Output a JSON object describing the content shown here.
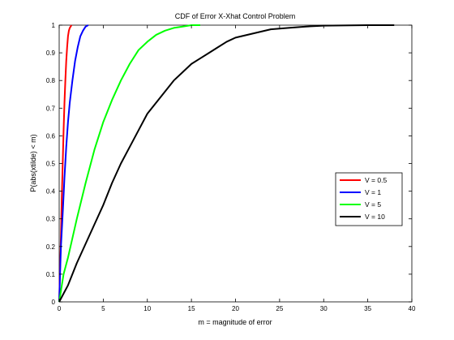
{
  "chart_data": {
    "type": "line",
    "title": "CDF of Error X-Xhat Control Problem",
    "xlabel": "m = magnitude of error",
    "ylabel": "P(abs(xtilde) < m)",
    "xlim": [
      0,
      40
    ],
    "ylim": [
      0,
      1
    ],
    "xticks": [
      0,
      5,
      10,
      15,
      20,
      25,
      30,
      35,
      40
    ],
    "yticks": [
      0,
      0.1,
      0.2,
      0.3,
      0.4,
      0.5,
      0.6,
      0.7,
      0.8,
      0.9,
      1
    ],
    "grid": false,
    "legend_position": "right",
    "series": [
      {
        "name": "V = 0.5",
        "color": "#ff0000",
        "x": [
          0,
          0.05,
          0.1,
          0.2,
          0.3,
          0.4,
          0.5,
          0.6,
          0.7,
          0.8,
          0.9,
          1.0,
          1.1,
          1.2,
          1.4
        ],
        "y": [
          0,
          0.06,
          0.12,
          0.24,
          0.38,
          0.5,
          0.62,
          0.72,
          0.8,
          0.87,
          0.92,
          0.96,
          0.98,
          0.99,
          1.0
        ]
      },
      {
        "name": "V = 1",
        "color": "#0000ff",
        "x": [
          0,
          0.2,
          0.4,
          0.6,
          0.8,
          1.0,
          1.2,
          1.5,
          1.8,
          2.1,
          2.4,
          2.7,
          3.0,
          3.3
        ],
        "y": [
          0,
          0.2,
          0.32,
          0.45,
          0.56,
          0.65,
          0.72,
          0.8,
          0.87,
          0.92,
          0.96,
          0.98,
          0.995,
          1.0
        ]
      },
      {
        "name": "V = 5",
        "color": "#00ff00",
        "x": [
          0,
          0.5,
          1,
          2,
          3,
          4,
          5,
          6,
          7,
          8,
          9,
          10,
          11,
          12,
          13,
          14,
          15,
          16
        ],
        "y": [
          0,
          0.1,
          0.16,
          0.3,
          0.43,
          0.55,
          0.65,
          0.73,
          0.8,
          0.86,
          0.91,
          0.94,
          0.965,
          0.98,
          0.99,
          0.995,
          1.0,
          1.0
        ]
      },
      {
        "name": "V = 10",
        "color": "#000000",
        "x": [
          0,
          0.5,
          1,
          2,
          3,
          4,
          5,
          6,
          7,
          8,
          9,
          10,
          11,
          12,
          13,
          14,
          15,
          16,
          17,
          18,
          19,
          20,
          22,
          24,
          26,
          28,
          30,
          32,
          35,
          38
        ],
        "y": [
          0,
          0.03,
          0.06,
          0.14,
          0.21,
          0.28,
          0.35,
          0.43,
          0.5,
          0.56,
          0.62,
          0.68,
          0.72,
          0.76,
          0.8,
          0.83,
          0.86,
          0.88,
          0.9,
          0.92,
          0.94,
          0.955,
          0.97,
          0.985,
          0.99,
          0.995,
          0.998,
          0.999,
          1.0,
          1.0
        ]
      }
    ]
  }
}
